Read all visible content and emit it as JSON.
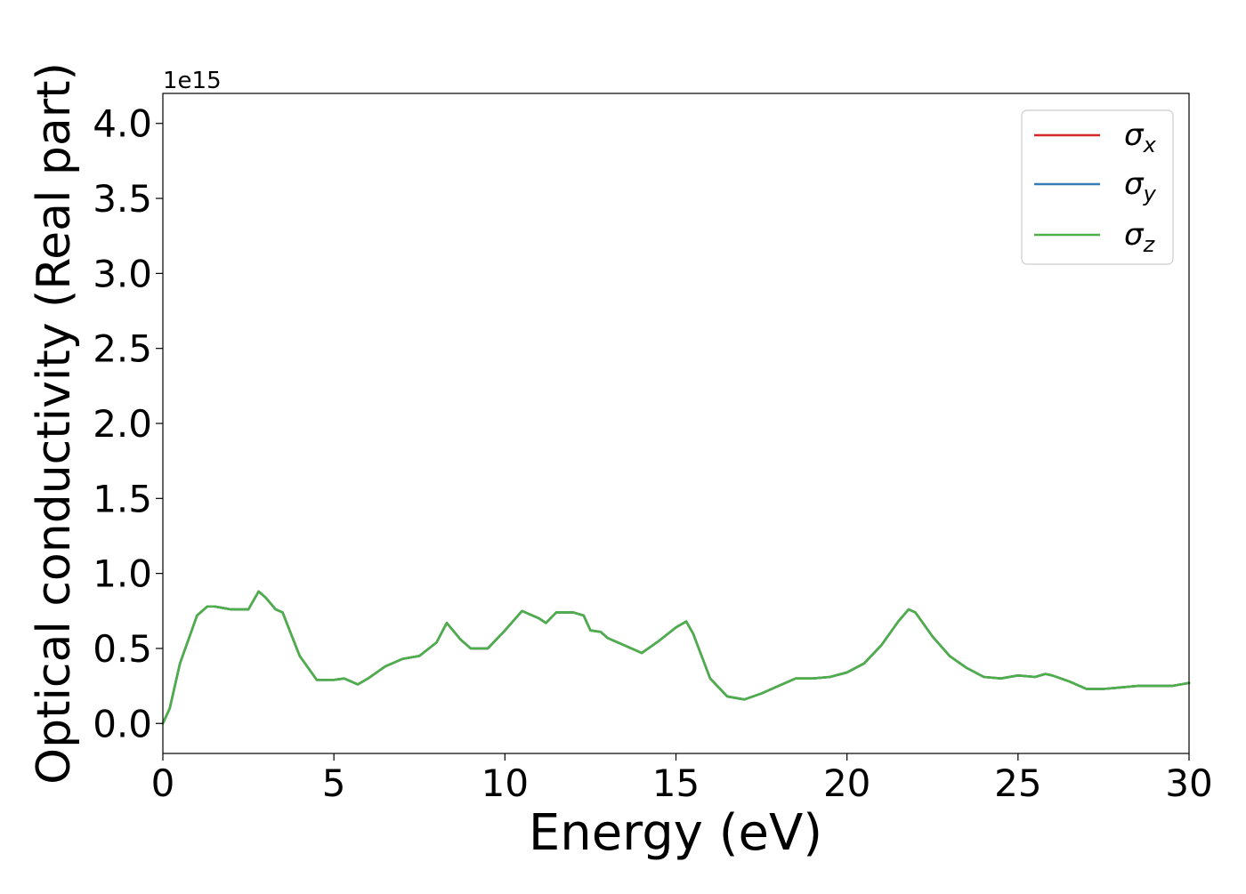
{
  "chart_data": {
    "type": "line",
    "xlabel": "Energy (eV)",
    "ylabel": "Optical conductivity (Real part)",
    "y_offset_label": "1e15",
    "xlim": [
      0,
      30
    ],
    "ylim": [
      -0.2,
      4.2
    ],
    "x_ticks": [
      0,
      5,
      10,
      15,
      20,
      25,
      30
    ],
    "x_tick_labels": [
      "0",
      "5",
      "10",
      "15",
      "20",
      "25",
      "30"
    ],
    "y_ticks": [
      0.0,
      0.5,
      1.0,
      1.5,
      2.0,
      2.5,
      3.0,
      3.5,
      4.0
    ],
    "y_tick_labels": [
      "0.0",
      "0.5",
      "1.0",
      "1.5",
      "2.0",
      "2.5",
      "3.0",
      "3.5",
      "4.0"
    ],
    "grid": false,
    "legend_position": "top-right",
    "x": [
      0,
      0.2,
      0.5,
      1.0,
      1.3,
      1.5,
      2.0,
      2.5,
      2.8,
      3.0,
      3.3,
      3.5,
      4.0,
      4.5,
      5.0,
      5.3,
      5.7,
      6.0,
      6.5,
      7.0,
      7.5,
      8.0,
      8.3,
      8.7,
      9.0,
      9.5,
      10.0,
      10.5,
      11.0,
      11.2,
      11.5,
      12.0,
      12.3,
      12.5,
      12.8,
      13.0,
      13.5,
      14.0,
      14.5,
      15.0,
      15.3,
      15.5,
      16.0,
      16.5,
      17.0,
      17.5,
      18.0,
      18.5,
      19.0,
      19.5,
      20.0,
      20.5,
      21.0,
      21.5,
      21.8,
      22.0,
      22.5,
      23.0,
      23.5,
      24.0,
      24.5,
      25.0,
      25.5,
      25.8,
      26.0,
      26.5,
      27.0,
      27.5,
      28.0,
      28.5,
      29.0,
      29.5,
      30.0
    ],
    "series": [
      {
        "name": "σx",
        "color": "#d62728",
        "values": [
          0.0,
          0.1,
          0.4,
          0.72,
          0.78,
          0.78,
          0.76,
          0.76,
          0.88,
          0.84,
          0.76,
          0.74,
          0.45,
          0.29,
          0.29,
          0.3,
          0.26,
          0.3,
          0.38,
          0.43,
          0.45,
          0.54,
          0.67,
          0.56,
          0.5,
          0.5,
          0.62,
          0.75,
          0.7,
          0.67,
          0.74,
          0.74,
          0.72,
          0.62,
          0.61,
          0.57,
          0.52,
          0.47,
          0.55,
          0.64,
          0.68,
          0.6,
          0.3,
          0.18,
          0.16,
          0.2,
          0.25,
          0.3,
          0.3,
          0.31,
          0.34,
          0.4,
          0.52,
          0.68,
          0.76,
          0.74,
          0.58,
          0.45,
          0.37,
          0.31,
          0.3,
          0.32,
          0.31,
          0.33,
          0.32,
          0.28,
          0.23,
          0.23,
          0.24,
          0.25,
          0.25,
          0.25,
          0.27
        ]
      },
      {
        "name": "σy",
        "color": "#377eb8",
        "values": [
          0.0,
          0.1,
          0.4,
          0.72,
          0.78,
          0.78,
          0.76,
          0.76,
          0.88,
          0.84,
          0.76,
          0.74,
          0.45,
          0.29,
          0.29,
          0.3,
          0.26,
          0.3,
          0.38,
          0.43,
          0.45,
          0.54,
          0.67,
          0.56,
          0.5,
          0.5,
          0.62,
          0.75,
          0.7,
          0.67,
          0.74,
          0.74,
          0.72,
          0.62,
          0.61,
          0.57,
          0.52,
          0.47,
          0.55,
          0.64,
          0.68,
          0.6,
          0.3,
          0.18,
          0.16,
          0.2,
          0.25,
          0.3,
          0.3,
          0.31,
          0.34,
          0.4,
          0.52,
          0.68,
          0.76,
          0.74,
          0.58,
          0.45,
          0.37,
          0.31,
          0.3,
          0.32,
          0.31,
          0.33,
          0.32,
          0.28,
          0.23,
          0.23,
          0.24,
          0.25,
          0.25,
          0.25,
          0.27
        ]
      },
      {
        "name": "σz",
        "color": "#4daf4a",
        "values": [
          0.0,
          0.1,
          0.4,
          0.72,
          0.78,
          0.78,
          0.76,
          0.76,
          0.88,
          0.84,
          0.76,
          0.74,
          0.45,
          0.29,
          0.29,
          0.3,
          0.26,
          0.3,
          0.38,
          0.43,
          0.45,
          0.54,
          0.67,
          0.56,
          0.5,
          0.5,
          0.62,
          0.75,
          0.7,
          0.67,
          0.74,
          0.74,
          0.72,
          0.62,
          0.61,
          0.57,
          0.52,
          0.47,
          0.55,
          0.64,
          0.68,
          0.6,
          0.3,
          0.18,
          0.16,
          0.2,
          0.25,
          0.3,
          0.3,
          0.31,
          0.34,
          0.4,
          0.52,
          0.68,
          0.76,
          0.74,
          0.58,
          0.45,
          0.37,
          0.31,
          0.3,
          0.32,
          0.31,
          0.33,
          0.32,
          0.28,
          0.23,
          0.23,
          0.24,
          0.25,
          0.25,
          0.25,
          0.27
        ]
      }
    ],
    "legend": [
      {
        "symbol": "σ",
        "sub": "x",
        "color": "#d62728"
      },
      {
        "symbol": "σ",
        "sub": "y",
        "color": "#377eb8"
      },
      {
        "symbol": "σ",
        "sub": "z",
        "color": "#4daf4a"
      }
    ]
  }
}
